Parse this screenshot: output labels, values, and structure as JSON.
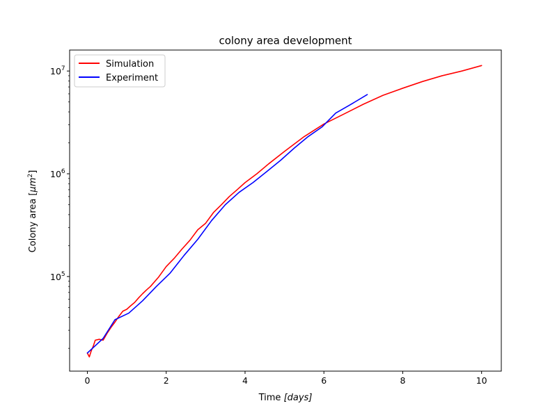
{
  "chart_data": {
    "type": "line",
    "title": "colony area development",
    "xlabel": "Time [days]",
    "xlabel_parts": {
      "text": "Time ",
      "unit": "[days]"
    },
    "ylabel": "Colony area [μm²]",
    "ylabel_parts": {
      "text": "Colony area ",
      "unit_open": "[",
      "unit_var": "μm",
      "unit_sup": "2",
      "unit_close": "]"
    },
    "xlim": [
      -0.45,
      10.5
    ],
    "ylim": [
      12000,
      16000000
    ],
    "yscale": "log",
    "grid": false,
    "legend_position": "upper-left",
    "x_ticks": [
      {
        "value": 0,
        "label": "0"
      },
      {
        "value": 2,
        "label": "2"
      },
      {
        "value": 4,
        "label": "4"
      },
      {
        "value": 6,
        "label": "6"
      },
      {
        "value": 8,
        "label": "8"
      },
      {
        "value": 10,
        "label": "10"
      }
    ],
    "y_ticks": [
      {
        "value": 100000,
        "base": "10",
        "exp": "5"
      },
      {
        "value": 1000000,
        "base": "10",
        "exp": "6"
      },
      {
        "value": 10000000,
        "base": "10",
        "exp": "7"
      }
    ],
    "y_minor_ticks": [
      20000,
      30000,
      40000,
      50000,
      60000,
      70000,
      80000,
      90000,
      200000,
      300000,
      400000,
      500000,
      600000,
      700000,
      800000,
      900000,
      2000000,
      3000000,
      4000000,
      5000000,
      6000000,
      7000000,
      8000000,
      9000000
    ],
    "series": [
      {
        "name": "Simulation",
        "color": "#ff0000",
        "x": [
          0.0,
          0.05,
          0.1,
          0.15,
          0.2,
          0.3,
          0.4,
          0.5,
          0.6,
          0.7,
          0.8,
          0.9,
          1.0,
          1.1,
          1.2,
          1.3,
          1.4,
          1.5,
          1.6,
          1.8,
          2.0,
          2.2,
          2.4,
          2.6,
          2.8,
          3.0,
          3.2,
          3.4,
          3.6,
          3.8,
          4.0,
          4.3,
          4.6,
          5.0,
          5.5,
          6.0,
          6.5,
          7.0,
          7.5,
          8.0,
          8.5,
          9.0,
          9.5,
          10.0
        ],
        "y": [
          18000,
          16500,
          19000,
          21000,
          24000,
          24500,
          24000,
          28000,
          32000,
          36000,
          41000,
          46000,
          48000,
          52000,
          56000,
          62000,
          68000,
          74000,
          80000,
          98000,
          125000,
          150000,
          185000,
          225000,
          285000,
          330000,
          420000,
          500000,
          600000,
          700000,
          820000,
          1000000,
          1250000,
          1650000,
          2300000,
          3050000,
          3800000,
          4750000,
          5800000,
          6800000,
          7900000,
          9000000,
          10000000,
          11300000
        ]
      },
      {
        "name": "Experiment",
        "color": "#0000ff",
        "x": [
          0.0,
          0.4,
          0.7,
          1.05,
          1.4,
          1.75,
          2.1,
          2.45,
          2.8,
          3.15,
          3.5,
          3.85,
          4.2,
          4.55,
          4.9,
          5.25,
          5.6,
          5.95,
          6.3,
          6.65,
          7.1
        ],
        "y": [
          18000,
          25000,
          38000,
          44000,
          58000,
          80000,
          108000,
          160000,
          230000,
          350000,
          500000,
          660000,
          820000,
          1050000,
          1350000,
          1780000,
          2300000,
          2850000,
          3900000,
          4650000,
          5900000
        ]
      }
    ]
  }
}
